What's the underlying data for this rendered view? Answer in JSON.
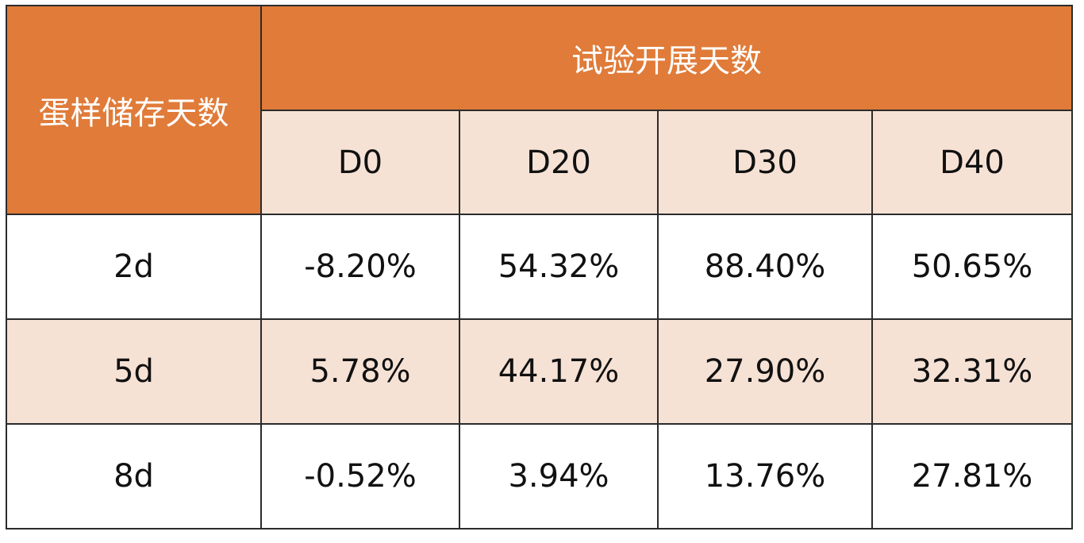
{
  "table": {
    "row_header_title": "蛋样储存天数",
    "column_group_title": "试验开展天数",
    "columns": [
      "D0",
      "D20",
      "D30",
      "D40"
    ],
    "rows": [
      {
        "label": "2d",
        "values": [
          "-8.20%",
          "54.32%",
          "88.40%",
          "50.65%"
        ]
      },
      {
        "label": "5d",
        "values": [
          "5.78%",
          "44.17%",
          "27.90%",
          "32.31%"
        ]
      },
      {
        "label": "8d",
        "values": [
          "-0.52%",
          "3.94%",
          "13.76%",
          "27.81%"
        ]
      }
    ]
  },
  "colors": {
    "header_orange": "#e07b39",
    "header_peach": "#f6e2d5",
    "row_alt": "#f6e2d5",
    "border": "#2b2b2b"
  }
}
